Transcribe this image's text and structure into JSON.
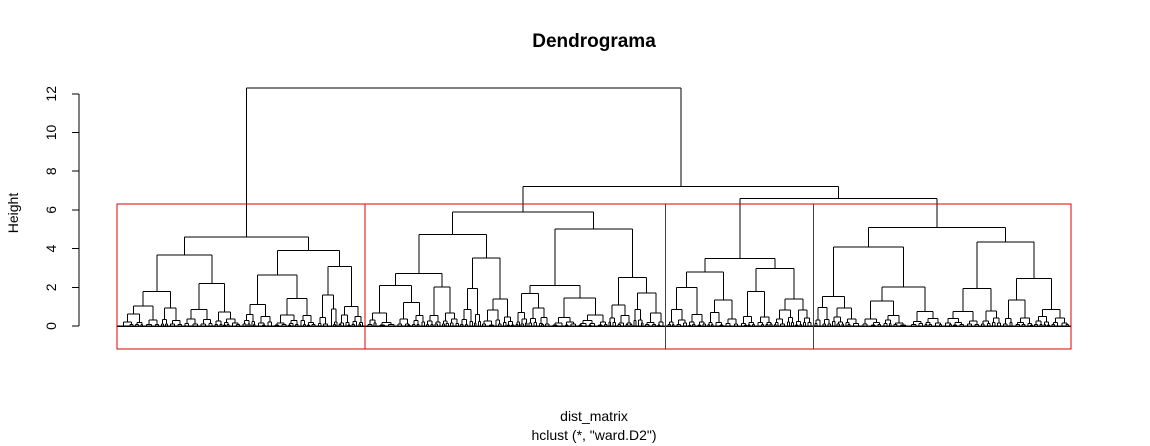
{
  "chart_data": {
    "type": "dendrogram",
    "title": "Dendrograma",
    "ylabel": "Height",
    "xlabel": "dist_matrix",
    "sub": "hclust (*, \"ward.D2\")",
    "ylim": [
      0,
      12.3
    ],
    "yticks": [
      0,
      2,
      4,
      6,
      8,
      10,
      12
    ],
    "grid": false,
    "clusters_k": 4,
    "rect_color": "#dd0000",
    "cut_height": 6.3,
    "line_color": "#000000",
    "clusters": [
      {
        "id": 1,
        "x_from": 0.0,
        "x_to": 0.26,
        "merge_height": 4.6
      },
      {
        "id": 2,
        "x_from": 0.26,
        "x_to": 0.575,
        "merge_height": 5.9
      },
      {
        "id": 3,
        "x_from": 0.575,
        "x_to": 0.73,
        "merge_height": 3.5
      },
      {
        "id": 4,
        "x_from": 0.73,
        "x_to": 1.0,
        "merge_height": 5.1
      }
    ],
    "top_merges": [
      {
        "join": [
          "3",
          "4"
        ],
        "height": 6.6
      },
      {
        "join": [
          "2",
          "3+4"
        ],
        "height": 7.2
      },
      {
        "join": [
          "1",
          "2+3+4"
        ],
        "height": 12.3
      }
    ]
  }
}
